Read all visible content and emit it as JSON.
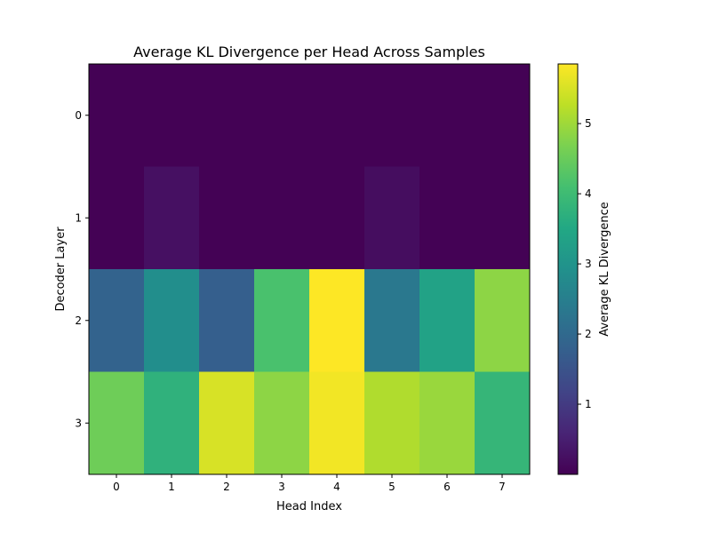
{
  "chart_data": {
    "type": "heatmap",
    "title": "Average KL Divergence per Head Across Samples",
    "xlabel": "Head Index",
    "ylabel": "Decoder Layer",
    "x_categories": [
      "0",
      "1",
      "2",
      "3",
      "4",
      "5",
      "6",
      "7"
    ],
    "y_categories": [
      "0",
      "1",
      "2",
      "3"
    ],
    "values": [
      [
        0.01,
        0.01,
        0.01,
        0.01,
        0.01,
        0.01,
        0.01,
        0.01
      ],
      [
        0.02,
        0.25,
        0.02,
        0.02,
        0.02,
        0.2,
        0.02,
        0.02
      ],
      [
        1.85,
        2.85,
        1.75,
        4.15,
        5.85,
        2.35,
        3.35,
        4.85
      ],
      [
        4.55,
        3.75,
        5.5,
        4.85,
        5.75,
        5.15,
        4.95,
        3.85
      ]
    ],
    "colormap": "viridis",
    "vmin": 0.0,
    "vmax": 5.85,
    "grid": false,
    "colorbar": {
      "label": "Average KL Divergence",
      "ticks": [
        1,
        2,
        3,
        4,
        5
      ]
    }
  }
}
